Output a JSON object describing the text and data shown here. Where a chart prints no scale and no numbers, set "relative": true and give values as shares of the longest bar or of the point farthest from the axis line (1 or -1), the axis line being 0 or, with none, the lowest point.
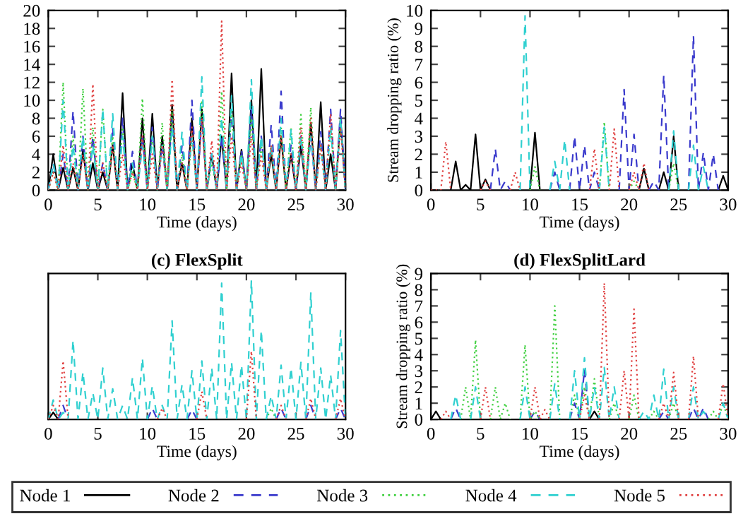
{
  "chart_data": [
    {
      "type": "line",
      "xlabel": "Time (days)",
      "xlim": [
        0,
        30
      ],
      "xticks": [
        0,
        5,
        10,
        15,
        20,
        25,
        30
      ],
      "ylim": [
        0,
        20
      ],
      "yticks": [
        0,
        2,
        4,
        6,
        8,
        10,
        12,
        14,
        16,
        18,
        20
      ],
      "grid": false,
      "legend": "bottom",
      "x": [
        0,
        0.5,
        1,
        1.5,
        2,
        2.5,
        3,
        3.5,
        4,
        4.5,
        5,
        5.5,
        6,
        6.5,
        7,
        7.5,
        8,
        8.5,
        9,
        9.5,
        10,
        10.5,
        11,
        11.5,
        12,
        12.5,
        13,
        13.5,
        14,
        14.5,
        15,
        15.5,
        16,
        16.5,
        17,
        17.5,
        18,
        18.5,
        19,
        19.5,
        20,
        20.5,
        21,
        21.5,
        22,
        22.5,
        23,
        23.5,
        24,
        24.5,
        25,
        25.5,
        26,
        26.5,
        27,
        27.5,
        28,
        28.5,
        29,
        29.5,
        30
      ],
      "series": [
        {
          "name": "Node 1",
          "color": "#000000",
          "line_style": "solid",
          "values": [
            0,
            4,
            0,
            2.5,
            0,
            2.5,
            0,
            4.5,
            0,
            3,
            0,
            2,
            0,
            5,
            0,
            10.8,
            0,
            3,
            0,
            8,
            0,
            8.5,
            0,
            6,
            0,
            9.5,
            0,
            3,
            0,
            8,
            0,
            9,
            0,
            4,
            0,
            6,
            0,
            13,
            0,
            4.5,
            0,
            10,
            0,
            13.5,
            0,
            4,
            0,
            6,
            0,
            4,
            0,
            5,
            0,
            7.5,
            0,
            9.8,
            0,
            4,
            0,
            8,
            0
          ]
        },
        {
          "name": "Node 2",
          "color": "#3a3acc",
          "line_style": "dashed",
          "values": [
            0,
            3,
            0,
            4,
            0,
            8.8,
            0,
            6,
            0,
            6,
            0,
            3,
            0,
            7,
            0,
            8,
            0,
            4.3,
            0,
            6,
            0,
            7,
            0,
            5,
            0,
            8,
            0,
            5,
            0,
            10,
            0,
            8,
            0,
            4,
            0,
            6,
            0,
            9,
            0,
            4.5,
            0,
            9,
            0,
            6,
            0,
            7.3,
            0,
            11,
            0,
            5,
            0,
            6,
            0,
            6,
            0,
            6.5,
            0,
            9,
            0,
            9,
            0
          ]
        },
        {
          "name": "Node 3",
          "color": "#40d040",
          "line_style": "dotted",
          "values": [
            0,
            2,
            0,
            12,
            0,
            6,
            0,
            11.3,
            0,
            7,
            0,
            9,
            0,
            6,
            0,
            7,
            0,
            2,
            0,
            10.2,
            0,
            6,
            0,
            7.5,
            0,
            9,
            0,
            4,
            0,
            6,
            0,
            10,
            0,
            3,
            0,
            11,
            0,
            9,
            0,
            4,
            0,
            8,
            0,
            5,
            0,
            5,
            0,
            7,
            0,
            7,
            0,
            8.4,
            0,
            9.2,
            0,
            5,
            0,
            7,
            0,
            8,
            0
          ]
        },
        {
          "name": "Node 4",
          "color": "#30d0d0",
          "line_style": "dashed",
          "values": [
            0,
            3,
            0,
            10,
            0,
            5,
            0,
            6,
            0,
            5,
            0,
            9,
            0,
            8.5,
            0,
            6,
            0,
            3,
            0,
            5,
            0,
            6,
            0,
            5,
            0,
            7,
            0,
            6.5,
            0,
            6,
            0,
            12.6,
            0,
            4,
            0,
            8,
            0,
            10.5,
            0,
            4,
            0,
            12.3,
            0,
            6,
            0,
            5,
            0,
            8,
            0,
            6.7,
            0,
            6,
            0,
            6,
            0,
            5,
            0,
            7,
            0,
            8,
            0
          ]
        },
        {
          "name": "Node 5",
          "color": "#e04040",
          "line_style": "dotted",
          "values": [
            0,
            2,
            0,
            5,
            0,
            3,
            0,
            4,
            0,
            11.8,
            0,
            3,
            0,
            5,
            0,
            4,
            0,
            2,
            0,
            6,
            0,
            4,
            0,
            5,
            0,
            12.3,
            0,
            3,
            0,
            7,
            0,
            8,
            0,
            5.5,
            0,
            18.8,
            0,
            6,
            0,
            3,
            0,
            6,
            0,
            4,
            0,
            5,
            0,
            6,
            0,
            4,
            0,
            7,
            0,
            8,
            0,
            5,
            0,
            8.5,
            0,
            7,
            0
          ]
        }
      ]
    },
    {
      "type": "line",
      "xlabel": "Time (days)",
      "ylabel": "Stream dropping ratio (%)",
      "xlim": [
        0,
        30
      ],
      "xticks": [
        0,
        5,
        10,
        15,
        20,
        25,
        30
      ],
      "ylim": [
        0,
        10
      ],
      "yticks": [
        0,
        1,
        2,
        3,
        4,
        5,
        6,
        7,
        8,
        9,
        10
      ],
      "grid": false,
      "x": [
        0,
        0.5,
        1,
        1.5,
        2,
        2.5,
        3,
        3.5,
        4,
        4.5,
        5,
        5.5,
        6,
        6.5,
        7,
        7.5,
        8,
        8.5,
        9,
        9.5,
        10,
        10.5,
        11,
        11.5,
        12,
        12.5,
        13,
        13.5,
        14,
        14.5,
        15,
        15.5,
        16,
        16.5,
        17,
        17.5,
        18,
        18.5,
        19,
        19.5,
        20,
        20.5,
        21,
        21.5,
        22,
        22.5,
        23,
        23.5,
        24,
        24.5,
        25,
        25.5,
        26,
        26.5,
        27,
        27.5,
        28,
        28.5,
        29,
        29.5,
        30
      ],
      "series": [
        {
          "color": "#000000",
          "line_style": "solid",
          "values": [
            null,
            null,
            null,
            null,
            0,
            1.6,
            0,
            0.3,
            0,
            3.1,
            0,
            0.6,
            0,
            null,
            null,
            null,
            null,
            null,
            null,
            null,
            0,
            3.2,
            0,
            null,
            null,
            null,
            null,
            null,
            null,
            null,
            null,
            null,
            null,
            null,
            null,
            null,
            null,
            null,
            null,
            null,
            null,
            null,
            0,
            1.2,
            0,
            null,
            0,
            1.0,
            0,
            3.0,
            0,
            null,
            null,
            null,
            null,
            null,
            null,
            null,
            0,
            0.8,
            0
          ]
        },
        {
          "color": "#3a3acc",
          "line_style": "dashed",
          "values": [
            null,
            null,
            null,
            null,
            null,
            null,
            null,
            null,
            null,
            null,
            null,
            null,
            0,
            2.3,
            0,
            0.5,
            0,
            null,
            null,
            null,
            null,
            null,
            null,
            null,
            0,
            1,
            0,
            null,
            0,
            3,
            0,
            2.5,
            0,
            1,
            0,
            null,
            null,
            null,
            0,
            5.6,
            0,
            3.1,
            0,
            null,
            0,
            0.5,
            0,
            6.4,
            0,
            null,
            null,
            null,
            0,
            8.6,
            0,
            2.1,
            0,
            2,
            0,
            null,
            null
          ]
        },
        {
          "color": "#40d040",
          "line_style": "dotted",
          "values": [
            null,
            null,
            null,
            null,
            null,
            null,
            null,
            null,
            null,
            null,
            null,
            null,
            null,
            null,
            null,
            null,
            null,
            null,
            null,
            null,
            0,
            1.3,
            0,
            null,
            null,
            null,
            null,
            null,
            null,
            null,
            null,
            null,
            null,
            null,
            0,
            3.8,
            0,
            null,
            null,
            null,
            0,
            0.5,
            0,
            null,
            null,
            null,
            null,
            null,
            0,
            1.5,
            0,
            null,
            null,
            null,
            null,
            null,
            null,
            null,
            null,
            null,
            null
          ]
        },
        {
          "color": "#30d0d0",
          "line_style": "dashed",
          "values": [
            null,
            null,
            null,
            null,
            null,
            null,
            null,
            null,
            null,
            null,
            null,
            null,
            null,
            null,
            null,
            null,
            null,
            null,
            0,
            9.7,
            0,
            null,
            null,
            null,
            0,
            1.6,
            0,
            2.8,
            0,
            null,
            null,
            null,
            null,
            null,
            0,
            3.5,
            0,
            null,
            null,
            null,
            null,
            null,
            null,
            null,
            null,
            null,
            null,
            null,
            0,
            3.3,
            0,
            null,
            0,
            2.5,
            0,
            1.3,
            0,
            null,
            null,
            null,
            null
          ]
        },
        {
          "color": "#e04040",
          "line_style": "dotted",
          "values": [
            0,
            0,
            0,
            2.7,
            0,
            null,
            null,
            null,
            null,
            null,
            0,
            0.5,
            0,
            null,
            null,
            null,
            0,
            1,
            0,
            null,
            null,
            null,
            null,
            null,
            null,
            null,
            null,
            null,
            null,
            null,
            null,
            null,
            0,
            2.3,
            0,
            null,
            0,
            3.4,
            0,
            null,
            0,
            1,
            0,
            1.5,
            0,
            null,
            null,
            null,
            null,
            null,
            null,
            null,
            null,
            null,
            null,
            null,
            null,
            null,
            null,
            null,
            null
          ]
        }
      ]
    },
    {
      "type": "line",
      "title": "(c) FlexSplit",
      "xlabel": "Time (days)",
      "relative": true,
      "tick_labels": "x",
      "xlim": [
        0,
        30
      ],
      "xticks": [
        0,
        5,
        10,
        15,
        20,
        25,
        30
      ],
      "grid": false,
      "x": [
        0,
        0.5,
        1,
        1.5,
        2,
        2.5,
        3,
        3.5,
        4,
        4.5,
        5,
        5.5,
        6,
        6.5,
        7,
        7.5,
        8,
        8.5,
        9,
        9.5,
        10,
        10.5,
        11,
        11.5,
        12,
        12.5,
        13,
        13.5,
        14,
        14.5,
        15,
        15.5,
        16,
        16.5,
        17,
        17.5,
        18,
        18.5,
        19,
        19.5,
        20,
        20.5,
        21,
        21.5,
        22,
        22.5,
        23,
        23.5,
        24,
        24.5,
        25,
        25.5,
        26,
        26.5,
        27,
        27.5,
        28,
        28.5,
        29,
        29.5,
        30
      ],
      "series": [
        {
          "color": "#000000",
          "line_style": "solid",
          "values": [
            0,
            0.05,
            0,
            null,
            null,
            null,
            null,
            null,
            null,
            null,
            null,
            null,
            null,
            null,
            null,
            null,
            null,
            null,
            null,
            null,
            null,
            null,
            null,
            null,
            null,
            null,
            null,
            null,
            null,
            null,
            null,
            null,
            null,
            null,
            null,
            null,
            null,
            null,
            null,
            null,
            null,
            null,
            null,
            null,
            null,
            null,
            null,
            null,
            null,
            null,
            null,
            null,
            null,
            null,
            null,
            null,
            null,
            null,
            null,
            null,
            null
          ]
        },
        {
          "color": "#3a3acc",
          "line_style": "dashed",
          "values": [
            null,
            null,
            0,
            0.1,
            0,
            null,
            null,
            null,
            null,
            null,
            null,
            null,
            null,
            null,
            null,
            null,
            null,
            null,
            null,
            null,
            0,
            0.08,
            0,
            null,
            null,
            null,
            null,
            null,
            0,
            0.07,
            0,
            null,
            null,
            null,
            null,
            null,
            null,
            null,
            null,
            null,
            null,
            null,
            null,
            null,
            null,
            null,
            0,
            0.08,
            0,
            null,
            null,
            null,
            0,
            0.1,
            0,
            null,
            null,
            null,
            0,
            0.08,
            0
          ]
        },
        {
          "color": "#40d040",
          "line_style": "dotted",
          "values": [
            null,
            null,
            null,
            null,
            null,
            null,
            null,
            null,
            null,
            null,
            null,
            null,
            null,
            null,
            null,
            null,
            null,
            null,
            null,
            null,
            null,
            null,
            null,
            null,
            null,
            null,
            null,
            null,
            null,
            null,
            null,
            null,
            null,
            null,
            null,
            null,
            null,
            null,
            null,
            null,
            null,
            null,
            null,
            null,
            0,
            0.08,
            0,
            null,
            null,
            null,
            null,
            null,
            null,
            null,
            null,
            null,
            null,
            null,
            null,
            null,
            null
          ]
        },
        {
          "color": "#30d0d0",
          "line_style": "dashed",
          "values": [
            0,
            0.14,
            0,
            0.05,
            0,
            0.57,
            0,
            0.34,
            0,
            0.19,
            0,
            0.37,
            0,
            0.22,
            0,
            0.1,
            0,
            0.3,
            0,
            0.44,
            0,
            0.24,
            0,
            0.1,
            0,
            0.71,
            0,
            0.25,
            0,
            0.35,
            0,
            0.42,
            0,
            0.37,
            0,
            0.98,
            0,
            0.41,
            0,
            0.39,
            0,
            1,
            0,
            0.64,
            0,
            0.17,
            0,
            0.39,
            0,
            0.37,
            0,
            0.41,
            0,
            0.91,
            0,
            0.37,
            0,
            0.32,
            0,
            0.64,
            0
          ]
        },
        {
          "color": "#e04040",
          "line_style": "dotted",
          "values": [
            0,
            0.1,
            0,
            0.42,
            0,
            null,
            null,
            null,
            null,
            null,
            null,
            null,
            null,
            null,
            null,
            null,
            null,
            null,
            null,
            null,
            null,
            null,
            0,
            0.08,
            0,
            null,
            null,
            null,
            null,
            null,
            0,
            0.2,
            0,
            null,
            null,
            null,
            null,
            null,
            null,
            null,
            0,
            0.49,
            0,
            null,
            null,
            null,
            0,
            0.1,
            0,
            null,
            null,
            null,
            0,
            0.15,
            0,
            null,
            null,
            null,
            0,
            0.15,
            0
          ]
        }
      ]
    },
    {
      "type": "line",
      "title": "(d) FlexSplitLard",
      "xlabel": "Time (days)",
      "ylabel": "Stream dropping ratio (%)",
      "xlim": [
        0,
        30
      ],
      "xticks": [
        0,
        5,
        10,
        15,
        20,
        25,
        30
      ],
      "ylim": [
        0,
        9
      ],
      "yticks": [
        0,
        1,
        2,
        3,
        4,
        5,
        6,
        7,
        8,
        9
      ],
      "grid": false,
      "x": [
        0,
        0.5,
        1,
        1.5,
        2,
        2.5,
        3,
        3.5,
        4,
        4.5,
        5,
        5.5,
        6,
        6.5,
        7,
        7.5,
        8,
        8.5,
        9,
        9.5,
        10,
        10.5,
        11,
        11.5,
        12,
        12.5,
        13,
        13.5,
        14,
        14.5,
        15,
        15.5,
        16,
        16.5,
        17,
        17.5,
        18,
        18.5,
        19,
        19.5,
        20,
        20.5,
        21,
        21.5,
        22,
        22.5,
        23,
        23.5,
        24,
        24.5,
        25,
        25.5,
        26,
        26.5,
        27,
        27.5,
        28,
        28.5,
        29,
        29.5,
        30
      ],
      "series": [
        {
          "color": "#000000",
          "line_style": "solid",
          "values": [
            0,
            0.5,
            0,
            null,
            null,
            null,
            null,
            null,
            null,
            null,
            null,
            null,
            null,
            null,
            null,
            null,
            null,
            null,
            null,
            null,
            null,
            null,
            null,
            null,
            null,
            null,
            null,
            null,
            null,
            null,
            null,
            null,
            0,
            0.5,
            0,
            null,
            null,
            null,
            null,
            null,
            null,
            null,
            null,
            null,
            null,
            null,
            null,
            null,
            null,
            null,
            null,
            null,
            null,
            null,
            null,
            null,
            null,
            null,
            null,
            null,
            null
          ]
        },
        {
          "color": "#3a3acc",
          "line_style": "dashed",
          "values": [
            null,
            null,
            null,
            null,
            0,
            0.7,
            0,
            null,
            null,
            null,
            null,
            null,
            null,
            null,
            null,
            null,
            null,
            null,
            null,
            null,
            0,
            0.5,
            0,
            null,
            null,
            null,
            null,
            null,
            0,
            1,
            0,
            3.1,
            0,
            null,
            null,
            null,
            null,
            null,
            null,
            null,
            null,
            null,
            null,
            null,
            null,
            null,
            0,
            0.5,
            0,
            null,
            null,
            null,
            0,
            0.7,
            0,
            0.7,
            0,
            null,
            null,
            null,
            null
          ]
        },
        {
          "color": "#40d040",
          "line_style": "dotted",
          "values": [
            null,
            null,
            null,
            null,
            null,
            null,
            0,
            2,
            0,
            4.9,
            0,
            null,
            0,
            2,
            0,
            1,
            0,
            null,
            0,
            4.6,
            0,
            0.5,
            0,
            null,
            0,
            7,
            0,
            null,
            0,
            1.5,
            0,
            2,
            0,
            2.5,
            0,
            null,
            0,
            1,
            0,
            null,
            0,
            1.5,
            0,
            null,
            0,
            0.5,
            0,
            null,
            0,
            1,
            0,
            null,
            null,
            null,
            null,
            null,
            0,
            0.5,
            0,
            1,
            0
          ]
        },
        {
          "color": "#30d0d0",
          "line_style": "dashed",
          "values": [
            null,
            null,
            null,
            null,
            0,
            1.5,
            0,
            null,
            0,
            2,
            0,
            null,
            null,
            null,
            null,
            null,
            null,
            null,
            0,
            2,
            0,
            null,
            null,
            null,
            0,
            2.2,
            0,
            null,
            0,
            3,
            0,
            3.8,
            0,
            2,
            0,
            3.2,
            0,
            2,
            0,
            null,
            null,
            null,
            0,
            0.5,
            0,
            1.5,
            0,
            3.1,
            0,
            2,
            0,
            null,
            0,
            2,
            0,
            0.5,
            0,
            null,
            0,
            1,
            0
          ]
        },
        {
          "color": "#e04040",
          "line_style": "dotted",
          "values": [
            null,
            null,
            0,
            0.5,
            0,
            null,
            null,
            null,
            null,
            null,
            0,
            2,
            0,
            null,
            null,
            null,
            null,
            null,
            null,
            null,
            0,
            2,
            0,
            0.6,
            0,
            null,
            null,
            null,
            null,
            null,
            0,
            1.5,
            0,
            null,
            0,
            8.4,
            0,
            null,
            0,
            3,
            0,
            6.8,
            0,
            null,
            null,
            null,
            0,
            1,
            0,
            2.9,
            0,
            null,
            0,
            3.9,
            0,
            null,
            null,
            null,
            0,
            2.2,
            0
          ]
        }
      ]
    }
  ]
}
